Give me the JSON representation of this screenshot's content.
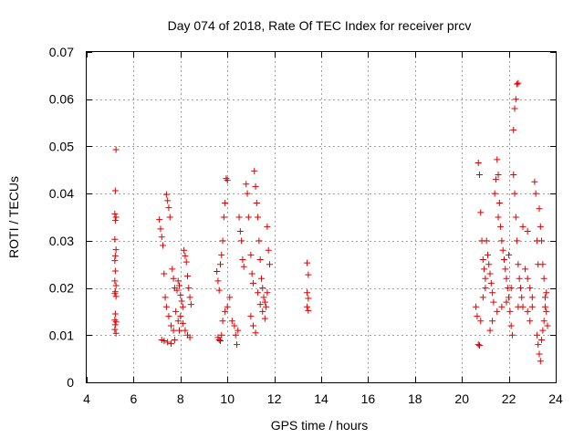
{
  "chart_data": {
    "type": "scatter",
    "title": "Day 074 of 2018, Rate Of TEC Index for receiver prcv",
    "xlabel": "GPS time / hours",
    "ylabel": "ROTI / TECUs",
    "xlim": [
      4,
      24
    ],
    "ylim": [
      0,
      0.07
    ],
    "grid": true,
    "marker": "+",
    "color": "#e00000",
    "x_ticks": [
      "4",
      "6",
      "8",
      "10",
      "12",
      "14",
      "16",
      "18",
      "20",
      "22",
      "24"
    ],
    "y_ticks": [
      "0",
      "0.01",
      "0.02",
      "0.03",
      "0.04",
      "0.05",
      "0.06",
      "0.07"
    ],
    "series": [
      {
        "name": "ROTI",
        "points": [
          [
            5.25,
            0.0493
          ],
          [
            5.22,
            0.0406
          ],
          [
            5.2,
            0.0357
          ],
          [
            5.25,
            0.035
          ],
          [
            5.22,
            0.0343
          ],
          [
            5.2,
            0.0303
          ],
          [
            5.25,
            0.0281
          ],
          [
            5.22,
            0.0268
          ],
          [
            5.2,
            0.0258
          ],
          [
            5.22,
            0.0236
          ],
          [
            5.2,
            0.0215
          ],
          [
            5.25,
            0.0205
          ],
          [
            5.22,
            0.0192
          ],
          [
            5.2,
            0.0188
          ],
          [
            5.25,
            0.0182
          ],
          [
            5.22,
            0.0145
          ],
          [
            5.2,
            0.0132
          ],
          [
            5.25,
            0.0128
          ],
          [
            5.22,
            0.0122
          ],
          [
            5.2,
            0.0112
          ],
          [
            5.25,
            0.0104
          ],
          [
            7.1,
            0.0345
          ],
          [
            7.15,
            0.0325
          ],
          [
            7.2,
            0.0308
          ],
          [
            7.25,
            0.029
          ],
          [
            7.4,
            0.0398
          ],
          [
            7.45,
            0.0385
          ],
          [
            7.5,
            0.037
          ],
          [
            7.55,
            0.035
          ],
          [
            7.3,
            0.023
          ],
          [
            7.35,
            0.018
          ],
          [
            7.4,
            0.016
          ],
          [
            7.5,
            0.014
          ],
          [
            7.6,
            0.012
          ],
          [
            7.7,
            0.011
          ],
          [
            7.2,
            0.009
          ],
          [
            7.3,
            0.0088
          ],
          [
            7.45,
            0.0085
          ],
          [
            7.6,
            0.0082
          ],
          [
            7.75,
            0.009
          ],
          [
            7.8,
            0.015
          ],
          [
            7.85,
            0.0195
          ],
          [
            7.9,
            0.0215
          ],
          [
            7.95,
            0.0205
          ],
          [
            8.0,
            0.0185
          ],
          [
            8.05,
            0.0172
          ],
          [
            8.1,
            0.016
          ],
          [
            8.15,
            0.028
          ],
          [
            8.2,
            0.0268
          ],
          [
            8.25,
            0.0255
          ],
          [
            8.3,
            0.0225
          ],
          [
            8.35,
            0.02
          ],
          [
            8.4,
            0.018
          ],
          [
            8.45,
            0.0165
          ],
          [
            7.65,
            0.024
          ],
          [
            7.7,
            0.022
          ],
          [
            7.75,
            0.02
          ],
          [
            8.0,
            0.014
          ],
          [
            8.1,
            0.0125
          ],
          [
            8.2,
            0.011
          ],
          [
            8.3,
            0.01
          ],
          [
            8.4,
            0.0095
          ],
          [
            7.9,
            0.013
          ],
          [
            7.95,
            0.011
          ],
          [
            9.55,
            0.0235
          ],
          [
            9.6,
            0.0215
          ],
          [
            9.65,
            0.0195
          ],
          [
            9.7,
            0.025
          ],
          [
            9.75,
            0.027
          ],
          [
            9.8,
            0.03
          ],
          [
            9.85,
            0.035
          ],
          [
            9.9,
            0.038
          ],
          [
            9.95,
            0.0432
          ],
          [
            10.0,
            0.0428
          ],
          [
            9.6,
            0.0095
          ],
          [
            9.65,
            0.009
          ],
          [
            9.7,
            0.0088
          ],
          [
            9.75,
            0.01
          ],
          [
            9.8,
            0.013
          ],
          [
            9.9,
            0.015
          ],
          [
            10.0,
            0.016
          ],
          [
            10.1,
            0.018
          ],
          [
            10.2,
            0.013
          ],
          [
            10.3,
            0.012
          ],
          [
            10.35,
            0.01
          ],
          [
            10.4,
            0.008
          ],
          [
            10.45,
            0.011
          ],
          [
            10.5,
            0.035
          ],
          [
            10.55,
            0.032
          ],
          [
            10.6,
            0.03
          ],
          [
            10.65,
            0.026
          ],
          [
            10.7,
            0.0245
          ],
          [
            10.8,
            0.042
          ],
          [
            10.85,
            0.04
          ],
          [
            10.9,
            0.035
          ],
          [
            11.0,
            0.027
          ],
          [
            11.05,
            0.023
          ],
          [
            11.1,
            0.021
          ],
          [
            11.15,
            0.0448
          ],
          [
            11.2,
            0.0415
          ],
          [
            11.25,
            0.038
          ],
          [
            11.3,
            0.035
          ],
          [
            11.35,
            0.03
          ],
          [
            11.4,
            0.026
          ],
          [
            11.45,
            0.022
          ],
          [
            11.5,
            0.02
          ],
          [
            11.55,
            0.018
          ],
          [
            11.6,
            0.017
          ],
          [
            11.65,
            0.016
          ],
          [
            11.7,
            0.033
          ],
          [
            11.75,
            0.028
          ],
          [
            11.8,
            0.025
          ],
          [
            11.0,
            0.014
          ],
          [
            11.1,
            0.012
          ],
          [
            11.2,
            0.0105
          ],
          [
            11.3,
            0.019
          ],
          [
            11.4,
            0.0165
          ],
          [
            11.5,
            0.015
          ],
          [
            11.6,
            0.0135
          ],
          [
            11.7,
            0.019
          ],
          [
            13.4,
            0.0253
          ],
          [
            13.45,
            0.0228
          ],
          [
            13.4,
            0.019
          ],
          [
            13.45,
            0.0178
          ],
          [
            13.4,
            0.016
          ],
          [
            13.45,
            0.0152
          ],
          [
            20.6,
            0.016
          ],
          [
            20.65,
            0.014
          ],
          [
            20.7,
            0.0465
          ],
          [
            20.75,
            0.044
          ],
          [
            20.8,
            0.036
          ],
          [
            20.85,
            0.03
          ],
          [
            20.9,
            0.026
          ],
          [
            20.95,
            0.024
          ],
          [
            21.0,
            0.022
          ],
          [
            20.7,
            0.008
          ],
          [
            20.75,
            0.0078
          ],
          [
            20.8,
            0.013
          ],
          [
            20.9,
            0.018
          ],
          [
            21.0,
            0.02
          ],
          [
            21.1,
            0.027
          ],
          [
            21.15,
            0.025
          ],
          [
            21.2,
            0.023
          ],
          [
            21.25,
            0.021
          ],
          [
            21.3,
            0.019
          ],
          [
            21.35,
            0.017
          ],
          [
            21.4,
            0.04
          ],
          [
            21.45,
            0.043
          ],
          [
            21.5,
            0.0472
          ],
          [
            21.55,
            0.044
          ],
          [
            21.6,
            0.038
          ],
          [
            21.65,
            0.033
          ],
          [
            21.7,
            0.03
          ],
          [
            21.75,
            0.028
          ],
          [
            21.8,
            0.026
          ],
          [
            21.85,
            0.024
          ],
          [
            21.9,
            0.022
          ],
          [
            21.95,
            0.02
          ],
          [
            22.0,
            0.018
          ],
          [
            22.05,
            0.015
          ],
          [
            22.1,
            0.012
          ],
          [
            22.15,
            0.01
          ],
          [
            22.2,
            0.0535
          ],
          [
            22.25,
            0.058
          ],
          [
            22.3,
            0.06
          ],
          [
            22.35,
            0.0632
          ],
          [
            22.4,
            0.0634
          ],
          [
            22.2,
            0.044
          ],
          [
            22.25,
            0.04
          ],
          [
            22.3,
            0.035
          ],
          [
            22.35,
            0.03
          ],
          [
            22.4,
            0.025
          ],
          [
            22.45,
            0.022
          ],
          [
            22.5,
            0.02
          ],
          [
            22.55,
            0.018
          ],
          [
            22.6,
            0.016
          ],
          [
            22.7,
            0.024
          ],
          [
            22.8,
            0.022
          ],
          [
            22.9,
            0.02
          ],
          [
            23.0,
            0.018
          ],
          [
            23.1,
            0.0425
          ],
          [
            23.15,
            0.04
          ],
          [
            23.2,
            0.03
          ],
          [
            23.25,
            0.025
          ],
          [
            23.3,
            0.0368
          ],
          [
            23.35,
            0.033
          ],
          [
            23.4,
            0.03
          ],
          [
            23.45,
            0.025
          ],
          [
            23.5,
            0.022
          ],
          [
            23.55,
            0.018
          ],
          [
            23.6,
            0.015
          ],
          [
            23.65,
            0.012
          ],
          [
            23.2,
            0.01
          ],
          [
            23.25,
            0.008
          ],
          [
            23.3,
            0.006
          ],
          [
            23.35,
            0.0045
          ],
          [
            23.4,
            0.009
          ],
          [
            23.45,
            0.011
          ],
          [
            23.5,
            0.013
          ],
          [
            23.55,
            0.016
          ],
          [
            23.6,
            0.019
          ],
          [
            22.8,
            0.015
          ],
          [
            22.9,
            0.013
          ],
          [
            23.0,
            0.016
          ],
          [
            21.2,
            0.011
          ],
          [
            21.3,
            0.013
          ],
          [
            21.5,
            0.015
          ],
          [
            21.7,
            0.016
          ],
          [
            21.9,
            0.017
          ],
          [
            22.1,
            0.02
          ],
          [
            22.6,
            0.033
          ],
          [
            22.8,
            0.032
          ],
          [
            21.05,
            0.03
          ],
          [
            21.55,
            0.035
          ],
          [
            22.0,
            0.027
          ],
          [
            22.4,
            0.016
          ]
        ]
      }
    ]
  }
}
